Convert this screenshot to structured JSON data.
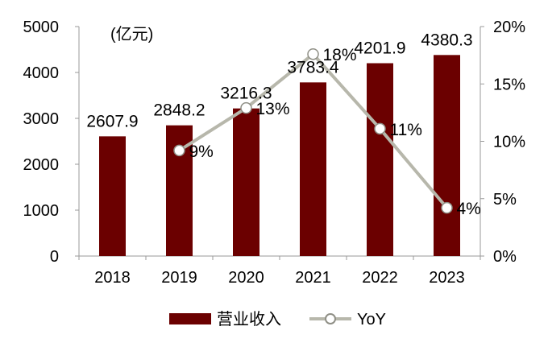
{
  "chart_data": {
    "type": "bar",
    "unit_label": "(亿元)",
    "categories": [
      "2018",
      "2019",
      "2020",
      "2021",
      "2022",
      "2023"
    ],
    "ylim": [
      0,
      5000
    ],
    "y_ticks": [
      "0",
      "1000",
      "2000",
      "3000",
      "4000",
      "5000"
    ],
    "y2lim": [
      0,
      20
    ],
    "y2_ticks": [
      "0%",
      "5%",
      "10%",
      "15%",
      "20%"
    ],
    "series": [
      {
        "name": "营业收入",
        "type": "bar",
        "axis": "left",
        "color": "#6b0000",
        "values": [
          2607.9,
          2848.2,
          3216.3,
          3783.4,
          4201.9,
          4380.3
        ],
        "labels": [
          "2607.9",
          "2848.2",
          "3216.3",
          "3783.4",
          "4201.9",
          "4380.3"
        ]
      },
      {
        "name": "YoY",
        "type": "line",
        "axis": "right",
        "color": "#b7b7ab",
        "values": [
          null,
          9.2,
          12.9,
          17.6,
          11.1,
          4.2
        ],
        "labels": [
          null,
          "9%",
          "13%",
          "18%",
          "11%",
          "4%"
        ]
      }
    ],
    "grid": false,
    "legend_position": "bottom"
  }
}
